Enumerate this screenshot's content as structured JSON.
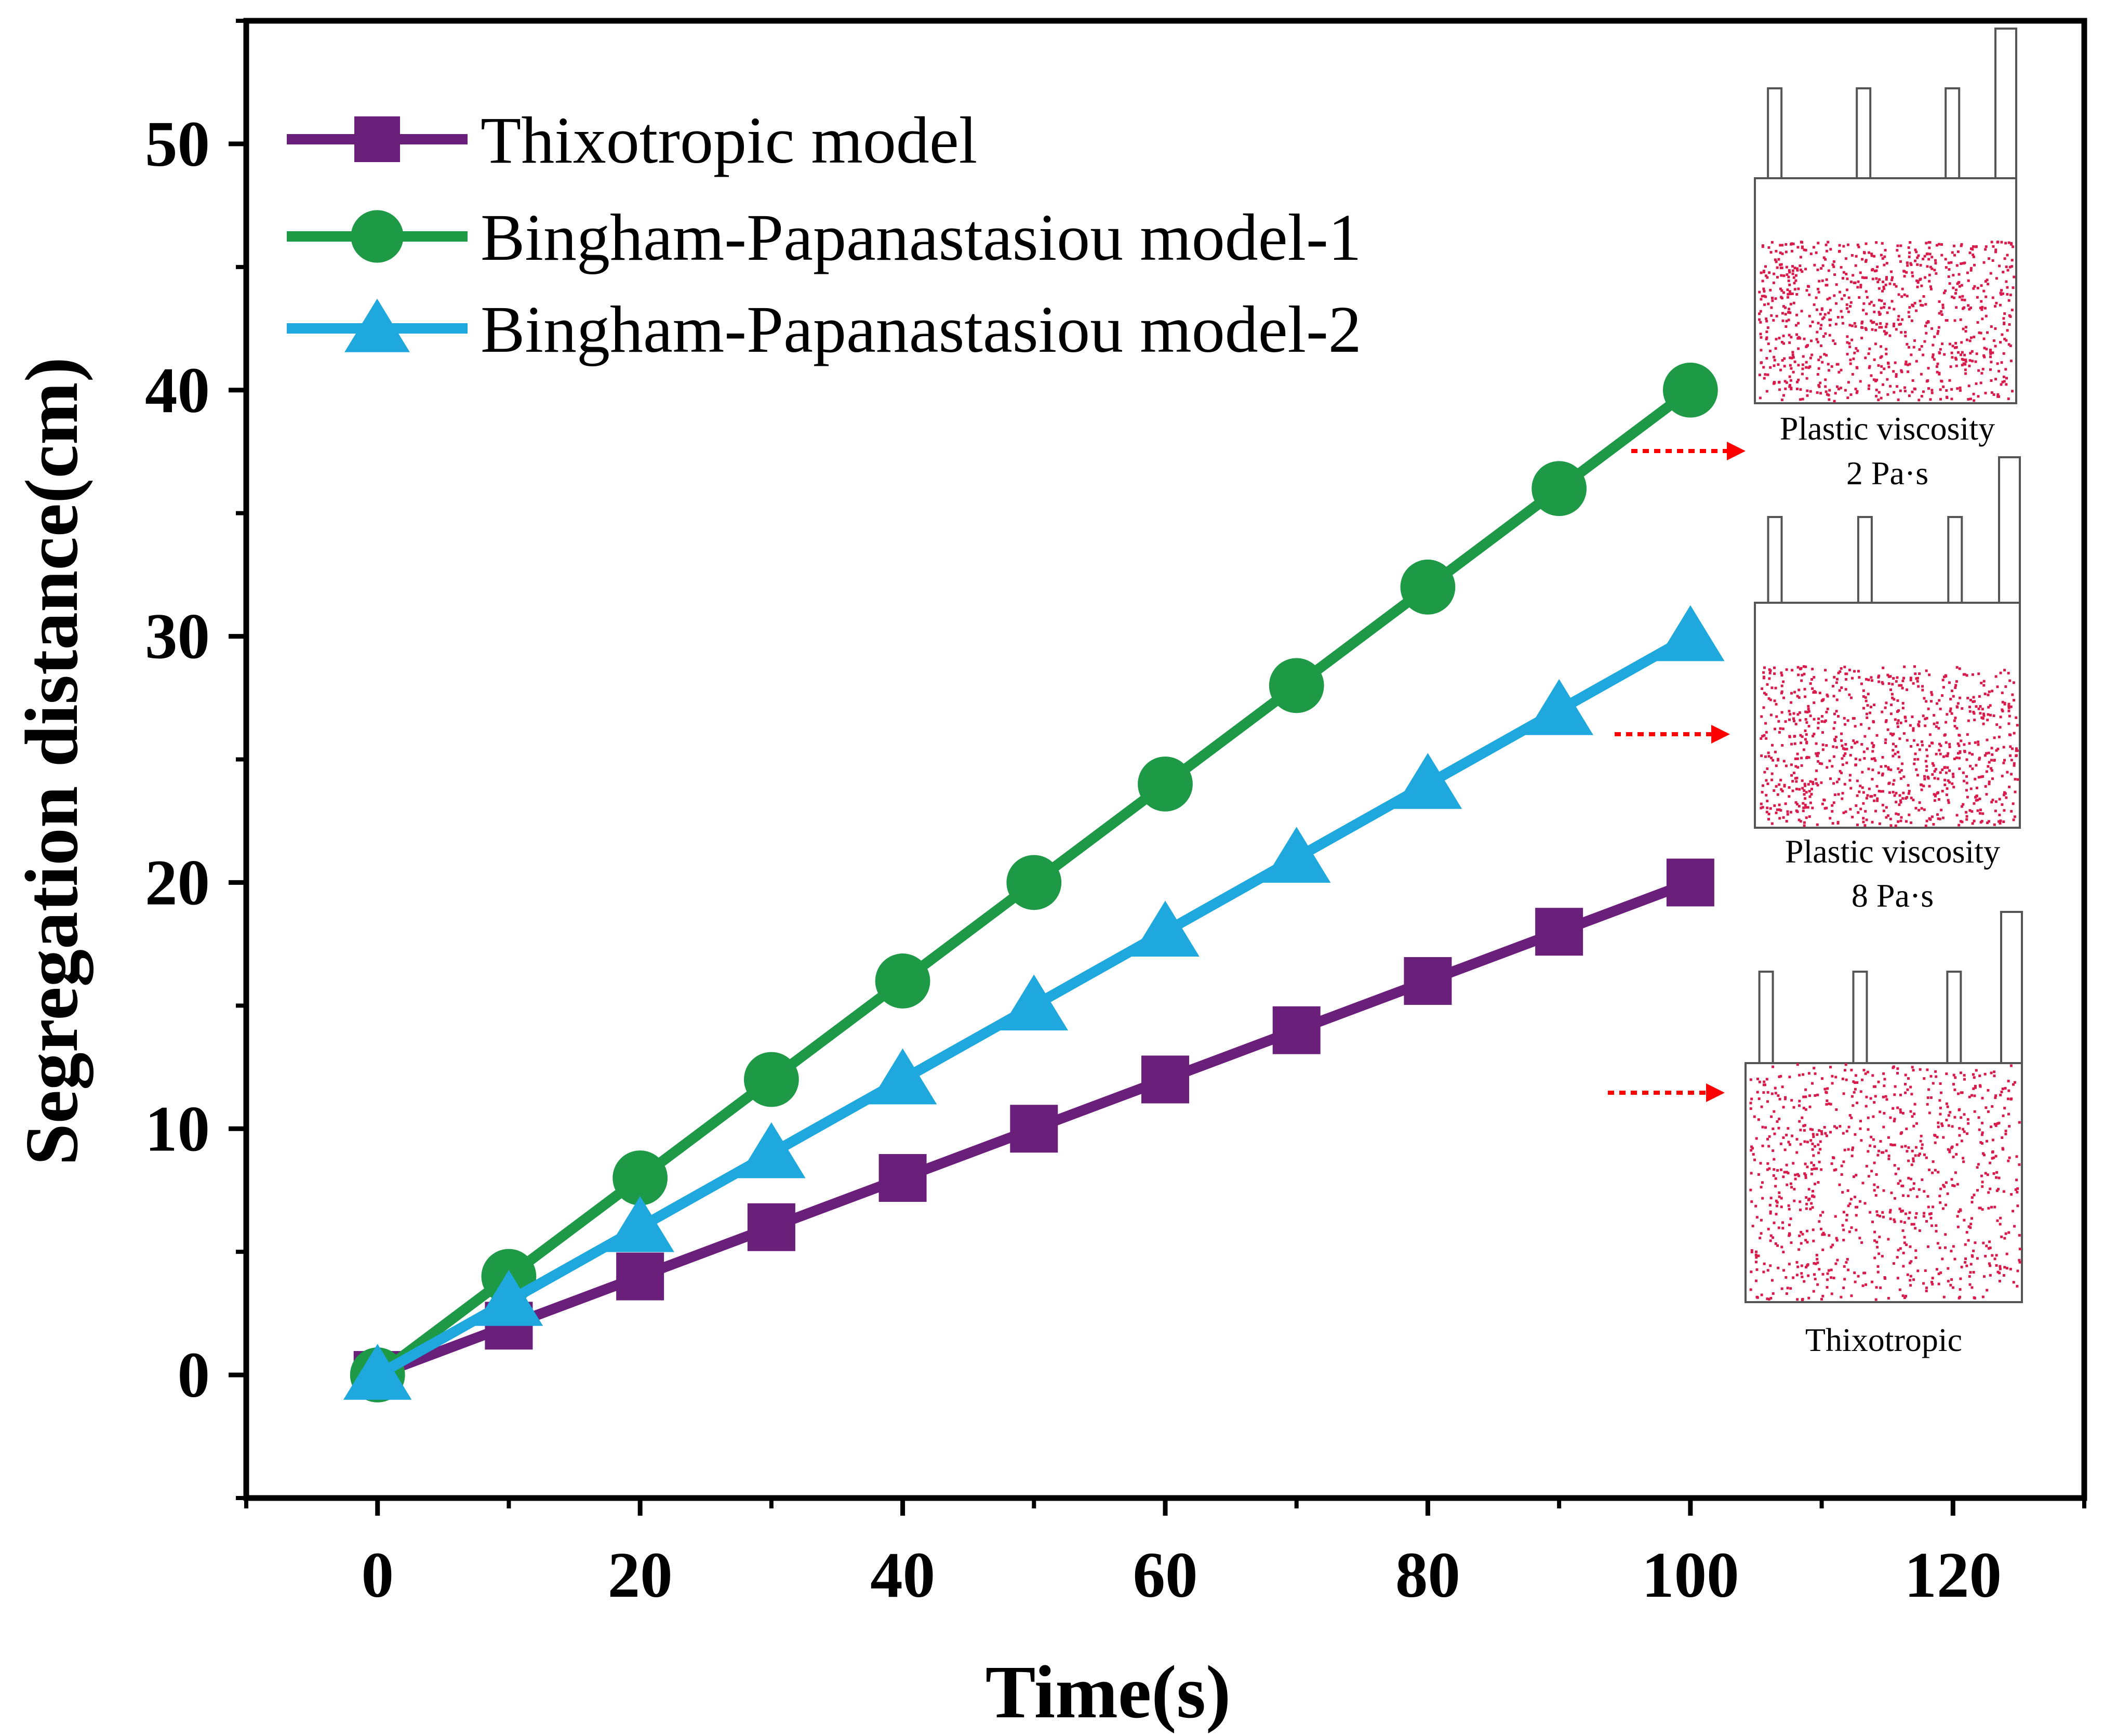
{
  "chart_data": {
    "type": "line",
    "title": "",
    "xlabel": "Time(s)",
    "ylabel": "Segregation distance(cm)",
    "xlim": [
      -10,
      130
    ],
    "ylim": [
      -5,
      55
    ],
    "xticks": [
      0,
      20,
      40,
      60,
      80,
      100,
      120
    ],
    "yticks": [
      0,
      10,
      20,
      30,
      40,
      50
    ],
    "xtick_labels": [
      "0",
      "20",
      "40",
      "60",
      "80",
      "100",
      "120"
    ],
    "ytick_labels": [
      "0",
      "10",
      "20",
      "30",
      "40",
      "50"
    ],
    "x": [
      0,
      10,
      20,
      30,
      40,
      50,
      60,
      70,
      80,
      90,
      100
    ],
    "series": [
      {
        "name": "Thixotropic model",
        "marker": "square",
        "color": "#6a1f7a",
        "values": [
          0,
          2,
          4,
          6,
          8,
          10,
          12,
          14,
          16,
          18,
          20
        ]
      },
      {
        "name": "Bingham-Papanastasiou model-1",
        "marker": "circle",
        "color": "#1e9a46",
        "values": [
          0,
          4,
          8,
          12,
          16,
          20,
          24,
          28,
          32,
          36,
          40
        ]
      },
      {
        "name": "Bingham-Papanastasiou model-2",
        "marker": "triangle",
        "color": "#1ea8dd",
        "values": [
          0,
          3,
          6,
          9,
          12,
          15,
          18,
          21,
          24,
          27,
          30
        ]
      }
    ],
    "legend_position": "top-left",
    "grid": false,
    "insets": [
      {
        "line1": "Plastic viscosity",
        "line2": "2 Pa·s"
      },
      {
        "line1": "Plastic viscosity",
        "line2": "8 Pa·s"
      },
      {
        "line1": "Thixotropic",
        "line2": ""
      }
    ],
    "annotation_color": "#ff0000",
    "particle_color": "#d81b4a"
  }
}
